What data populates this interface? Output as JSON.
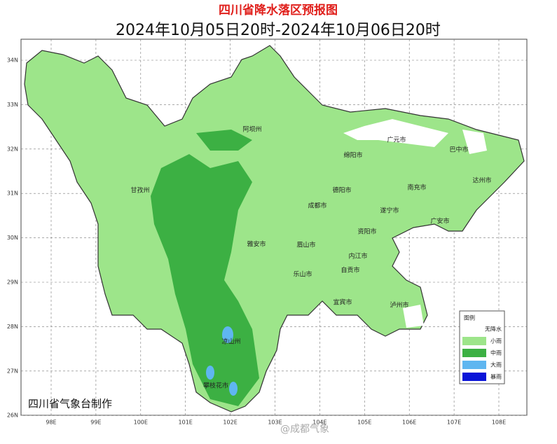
{
  "header": {
    "title": "四川省降水落区预报图",
    "subtitle": "2024年10月05日20时-2024年10月06日20时"
  },
  "axes": {
    "lat_labels": [
      "34N",
      "33N",
      "32N",
      "31N",
      "30N",
      "29N",
      "28N",
      "27N",
      "26N"
    ],
    "lon_labels": [
      "98E",
      "99E",
      "100E",
      "101E",
      "102E",
      "103E",
      "104E",
      "105E",
      "106E",
      "107E",
      "108E"
    ]
  },
  "cities": [
    "阿坝州",
    "绵阳市",
    "广元市",
    "巴中市",
    "甘孜州",
    "德阳市",
    "南充市",
    "达州市",
    "成都市",
    "遂宁市",
    "广安市",
    "资阳市",
    "雅安市",
    "眉山市",
    "内江市",
    "自贡市",
    "乐山市",
    "宜宾市",
    "泸州市",
    "凉山州",
    "攀枝花市"
  ],
  "legend": {
    "title": "图例",
    "items": [
      {
        "label": "无降水",
        "color": "#ffffff"
      },
      {
        "label": "小雨",
        "color": "#9de58a"
      },
      {
        "label": "中雨",
        "color": "#3cb043"
      },
      {
        "label": "大雨",
        "color": "#5fb6f0"
      },
      {
        "label": "暴雨",
        "color": "#0a14d8"
      }
    ]
  },
  "credit": "四川省气象台制作",
  "watermark": "@成都气象"
}
